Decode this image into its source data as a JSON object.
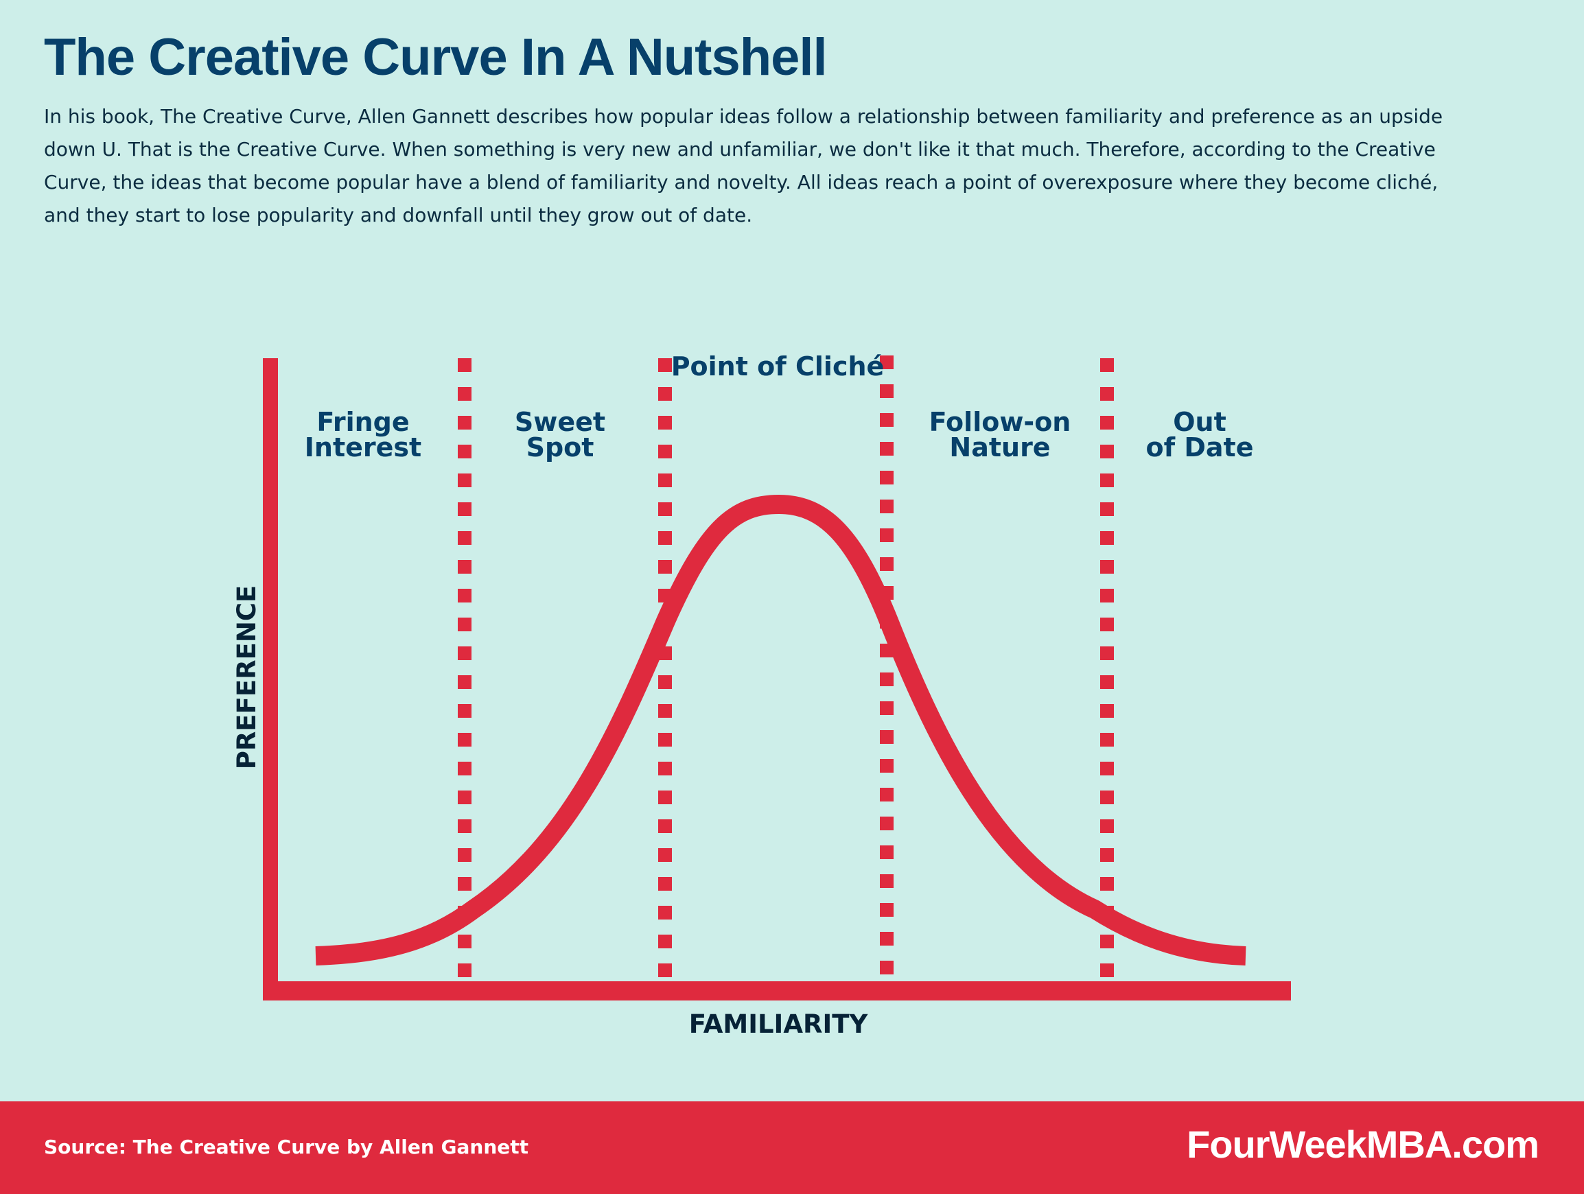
{
  "header": {
    "title": "The Creative Curve In A Nutshell",
    "description": "In his book, The Creative Curve, Allen Gannett describes how popular ideas follow a relationship between familiarity and preference as an upside down U. That is the Creative Curve. When something is very new and unfamiliar, we don't like it that much. Therefore, according to the Creative Curve, the ideas that become popular have a blend of familiarity and novelty. All ideas reach a point of overexposure where they become cliché, and they start to lose popularity and downfall until they grow out of date."
  },
  "diagram": {
    "x_axis_label": "FAMILIARITY",
    "y_axis_label": "PREFERENCE",
    "stages": [
      {
        "line1": "Fringe",
        "line2": "Interest"
      },
      {
        "line1": "Sweet",
        "line2": "Spot"
      },
      {
        "line1": "Point of Cliché",
        "line2": ""
      },
      {
        "line1": "Follow-on",
        "line2": "Nature"
      },
      {
        "line1": "Out",
        "line2": "of Date"
      }
    ],
    "colors": {
      "curve": "#df2a3e",
      "axis": "#df2a3e",
      "divider": "#df2a3e",
      "label": "#07406a"
    }
  },
  "footer": {
    "source": "Source: The Creative Curve by Allen Gannett",
    "brand": "FourWeekMBA.com"
  }
}
